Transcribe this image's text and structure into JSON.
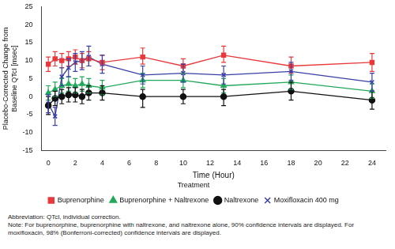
{
  "chart_data": {
    "type": "line",
    "x_label": "Time (Hour)",
    "y_label": "Placebo-Corrected Change from Baseline QTcI [msec]",
    "legend_title": "Treatment",
    "legend": "bottom",
    "grid": false,
    "x": [
      0,
      0.5,
      1,
      1.5,
      2,
      2.5,
      3,
      4,
      7,
      10,
      13,
      18,
      24
    ],
    "xlim": [
      -0.5,
      25
    ],
    "xticks": [
      0,
      2,
      4,
      6,
      8,
      10,
      12,
      14,
      16,
      18,
      20,
      22,
      24
    ],
    "ylim": [
      -15,
      25
    ],
    "yticks": [
      -15,
      -10,
      -5,
      0,
      5,
      10,
      15,
      20,
      25
    ],
    "series": [
      {
        "name": "Buprenorphine",
        "color": "#e8393b",
        "marker": "square",
        "line_style": "solid",
        "values": [
          9,
          10.5,
          10,
          10.5,
          11,
          10,
          10.5,
          9.5,
          11,
          8.5,
          11.5,
          8.5,
          9.5
        ],
        "lower": [
          7,
          8.5,
          8,
          8.5,
          9,
          8,
          8.5,
          7.5,
          9,
          6.5,
          9.5,
          6.5,
          7
        ],
        "upper": [
          11,
          12.5,
          12,
          12.5,
          13,
          12,
          12.5,
          11.5,
          13.5,
          10.5,
          14,
          11,
          12
        ]
      },
      {
        "name": "Buprenorphine + Naltrexone",
        "color": "#22a85a",
        "marker": "triangle",
        "line_style": "solid",
        "values": [
          1,
          2,
          3,
          3.5,
          3,
          3.5,
          3,
          2.5,
          4.5,
          4.5,
          3,
          4,
          1.5
        ],
        "lower": [
          -1,
          0,
          1,
          1.5,
          1,
          1.5,
          1,
          0.5,
          2.5,
          2.5,
          1,
          2,
          -0.5
        ],
        "upper": [
          3,
          4,
          5,
          5.5,
          5,
          5.5,
          5,
          4.5,
          6.5,
          6.5,
          5,
          6,
          3.5
        ]
      },
      {
        "name": "Naltrexone",
        "color": "#111111",
        "marker": "circle",
        "line_style": "solid",
        "values": [
          -2.5,
          -0.5,
          0,
          0.5,
          0.5,
          0,
          1,
          1,
          0,
          0,
          0,
          1.5,
          -1
        ],
        "lower": [
          -5,
          -2.5,
          -2,
          -1.5,
          -1.5,
          -2,
          -1,
          -1,
          -3,
          -2,
          -2.5,
          -1,
          -3.5
        ],
        "upper": [
          0,
          1.5,
          2,
          2.5,
          2.5,
          2,
          3,
          3,
          2,
          2,
          2,
          4,
          1.5
        ]
      },
      {
        "name": "Moxifloxacin 400 mg",
        "color": "#3a3fa8",
        "marker": "cross",
        "line_style": "solid",
        "values": [
          -2,
          -5.5,
          5.5,
          8,
          9.5,
          10,
          11,
          9,
          6,
          6.5,
          6,
          7,
          4
        ],
        "lower": [
          -4.5,
          -8,
          3,
          5.5,
          7,
          7.5,
          8.5,
          6.5,
          3.5,
          4,
          3.5,
          4.5,
          1.5
        ],
        "upper": [
          0.5,
          -3,
          8,
          10.5,
          12,
          12.5,
          14,
          11.5,
          8.5,
          9,
          8.5,
          9.5,
          6.5
        ]
      }
    ],
    "annotations": [
      "Abbreviation: QTcI, individual correction.",
      "Note: For buprenorphine, buprenorphine with naltrexone, and naltrexone alone, 90% confidence intervals are displayed. For moxifloxacin, 98% (Bonferroni-corrected) confidence intervals are displayed."
    ]
  }
}
